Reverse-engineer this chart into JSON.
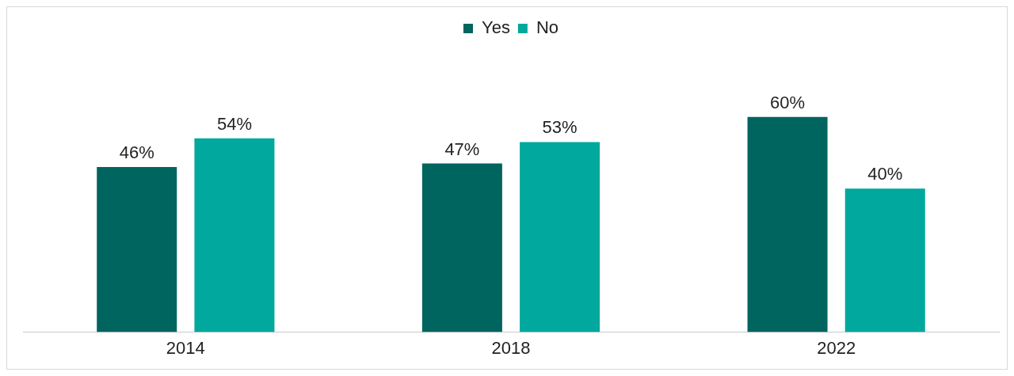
{
  "chart_data": {
    "type": "bar",
    "categories": [
      "2014",
      "2018",
      "2022"
    ],
    "series": [
      {
        "name": "Yes",
        "color": "#00645f",
        "values": [
          46,
          47,
          60
        ],
        "value_labels": [
          "46%",
          "47%",
          "60%"
        ]
      },
      {
        "name": "No",
        "color": "#00a89d",
        "values": [
          54,
          53,
          40
        ],
        "value_labels": [
          "54%",
          "53%",
          "40%"
        ]
      }
    ],
    "legend": "top",
    "grid": false
  }
}
